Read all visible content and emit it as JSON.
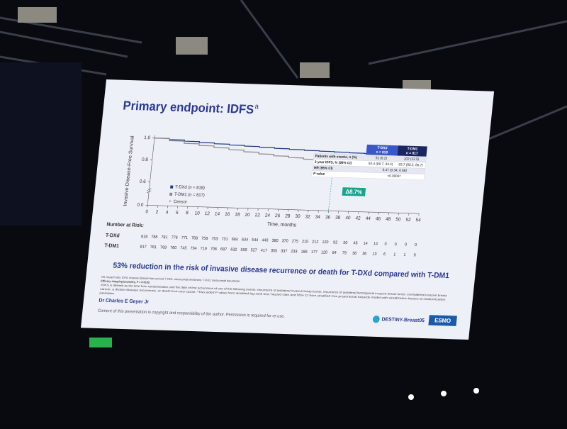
{
  "slide": {
    "title": "Primary endpoint: IDFS",
    "title_sup": "a",
    "table": {
      "col_heads": [
        [
          "T-DXd",
          "n = 818"
        ],
        [
          "T-DM1",
          "n = 817"
        ]
      ],
      "rows": [
        [
          "Patients with events, n (%)",
          "51 (6.2)",
          "102 (12.5)"
        ],
        [
          "3-year IDFS, % (95% CI)",
          "92.4 (89.7, 94.4)",
          "83.7 (80.2, 86.7)"
        ],
        [
          "HR (95% CI)",
          "0.47 (0.34, 0.66)"
        ],
        [
          "P value",
          "<0.0001ᵇ"
        ]
      ]
    },
    "risk": {
      "title": "Number at Risk:",
      "rows": [
        {
          "label": "T-DXd",
          "counts": [
            818,
            788,
            781,
            776,
            771,
            768,
            758,
            753,
            731,
            684,
            634,
            544,
            440,
            380,
            370,
            275,
            215,
            212,
            120,
            92,
            50,
            46,
            14,
            14,
            0,
            0,
            0,
            0
          ]
        },
        {
          "label": "T-DM1",
          "counts": [
            817,
            781,
            769,
            760,
            745,
            734,
            719,
            706,
            687,
            632,
            599,
            527,
            417,
            355,
            337,
            233,
            186,
            177,
            120,
            84,
            79,
            38,
            36,
            13,
            6,
            1,
            1,
            0
          ]
        }
      ]
    },
    "statement": "53% reduction in the risk of invasive disease recurrence or death for T-DXd compared with T-DM1",
    "footnotes": [
      "HR, hazard ratio; IDFS, invasive disease-free survival; T-DM1, trastuzumab emtansine; T-DXd, trastuzumab deruxtecan.",
      "Efficacy stopping boundary, P = 0.0183.",
      "ᵃIDFS is defined as the time from randomization until the date of first occurrence of one of the following events: recurrence of ipsilateral invasive breast tumor, recurrence of ipsilateral locoregional invasive breast tumor, contralateral invasive breast",
      "cancer, a distant disease recurrence, or death from any cause. ᵇTwo-sided P value from stratified log-rank test; hazard ratio and 95% CI from stratified Cox proportional hazards model with stratification factors at randomization.",
      "presentation."
    ],
    "presenter": "Dr Charles E Geyer Jr",
    "copyright": "Content of this presentation is copyright and responsibility of the author. Permission is required for re-use.",
    "logo_trial": "DESTINY-Breast05",
    "logo_congress": "ESMO"
  },
  "chart_data": {
    "type": "line",
    "y_label": "Invasive Disease-Free Survival",
    "x_label": "Time, months",
    "x": [
      0,
      3,
      6,
      9,
      12,
      15,
      18,
      21,
      24,
      27,
      30,
      33,
      36,
      39,
      42,
      45,
      48
    ],
    "series": [
      {
        "name": "T-DXd (n = 818)",
        "color": "#1e3a8a",
        "values": [
          1.0,
          0.99,
          0.98,
          0.972,
          0.965,
          0.958,
          0.952,
          0.946,
          0.94,
          0.935,
          0.93,
          0.927,
          0.924,
          0.92,
          0.918,
          0.916,
          0.915
        ]
      },
      {
        "name": "T-DM1 (n = 817)",
        "color": "#8a8a8a",
        "values": [
          1.0,
          0.98,
          0.96,
          0.945,
          0.93,
          0.915,
          0.9,
          0.885,
          0.872,
          0.86,
          0.85,
          0.843,
          0.837,
          0.83,
          0.826,
          0.823,
          0.82
        ]
      }
    ],
    "censor_label": "Censor",
    "annotation": "Δ8.7%",
    "xlim": [
      0,
      54
    ],
    "xticks": [
      0,
      2,
      4,
      6,
      8,
      10,
      12,
      14,
      16,
      18,
      20,
      22,
      24,
      26,
      28,
      30,
      32,
      34,
      36,
      38,
      40,
      42,
      44,
      46,
      48,
      50,
      52,
      54
    ],
    "ylim": [
      0,
      1
    ],
    "yticks": [
      {
        "value": 0,
        "label": "0.0"
      },
      {
        "value": 0.6,
        "label": "0.6"
      },
      {
        "value": 0.8,
        "label": "0.8"
      },
      {
        "value": 1,
        "label": "1.0"
      }
    ],
    "axis_break": [
      0,
      0.6
    ]
  }
}
